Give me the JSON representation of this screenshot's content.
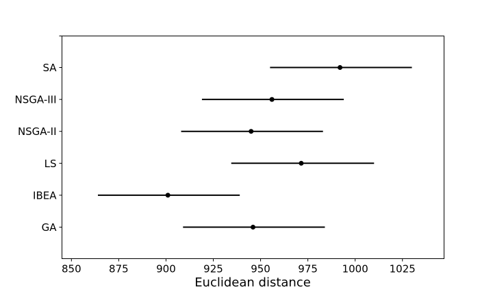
{
  "chart_data": {
    "type": "errorbar",
    "xlabel": "Euclidean distance",
    "ylabel": "",
    "title": "",
    "xlim": [
      845,
      1047
    ],
    "x_ticks": [
      850,
      875,
      900,
      925,
      950,
      975,
      1000,
      1025
    ],
    "categories": [
      "SA",
      "NSGA-III",
      "NSGA-II",
      "LS",
      "IBEA",
      "GA"
    ],
    "means": [
      992.0,
      956.0,
      945.0,
      971.5,
      901.0,
      946.0
    ],
    "lower": [
      955.0,
      919.0,
      908.0,
      934.5,
      864.0,
      909.0
    ],
    "upper": [
      1030.0,
      994.0,
      983.0,
      1010.0,
      939.0,
      984.0
    ],
    "colors": {
      "marker": "#000000",
      "line": "#000000"
    }
  }
}
